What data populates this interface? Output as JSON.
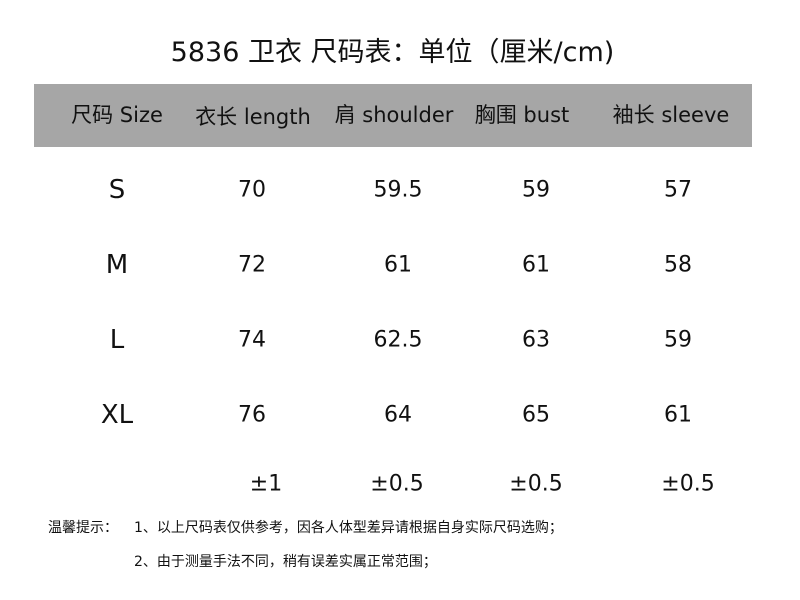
{
  "title": "5836 卫衣  尺码表：单位（厘米/cm)",
  "header_bg": "#a6a6a6",
  "columns": [
    "尺码 Size",
    "衣长 length",
    "肩 shoulder",
    "胸围 bust",
    "袖长 sleeve"
  ],
  "rows": [
    {
      "size": "S",
      "length": "70",
      "shoulder": "59.5",
      "bust": "59",
      "sleeve": "57"
    },
    {
      "size": "M",
      "length": "72",
      "shoulder": "61",
      "bust": "61",
      "sleeve": "58"
    },
    {
      "size": "L",
      "length": "74",
      "shoulder": "62.5",
      "bust": "63",
      "sleeve": "59"
    },
    {
      "size": "XL",
      "length": "76",
      "shoulder": "64",
      "bust": "65",
      "sleeve": "61"
    }
  ],
  "tolerance": {
    "length": "±1",
    "shoulder": "±0.5",
    "bust": "±0.5",
    "sleeve": "±0.5"
  },
  "notes": {
    "label": "温馨提示：",
    "line1": "1、以上尺码表仅供参考，因各人体型差异请根据自身实际尺码选购；",
    "line2": "2、由于测量手法不同，稍有误差实属正常范围；"
  }
}
